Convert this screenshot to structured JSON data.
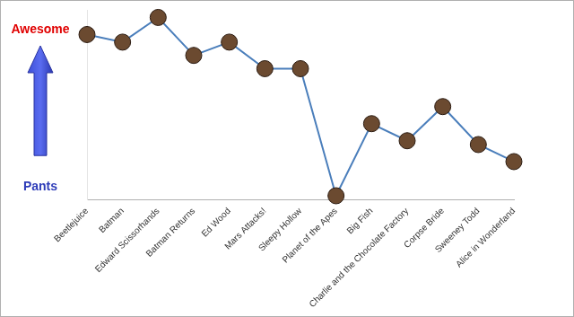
{
  "chart_data": {
    "type": "line",
    "categories": [
      "Beetlejuice",
      "Batman",
      "Edward Scissorhands",
      "Batman Returns",
      "Ed Wood",
      "Mars Attacks!",
      "Sleepy Hollow",
      "Planet of the Apes",
      "Big Fish",
      "Charlie and the Chocolate Factory",
      "Corpse Bride",
      "Sweeney Todd",
      "Alice in Wonderland"
    ],
    "values": [
      8.7,
      8.3,
      9.6,
      7.6,
      8.3,
      6.9,
      6.9,
      0.2,
      4.0,
      3.1,
      4.9,
      2.9,
      2.0
    ],
    "color": "#4a7ebb",
    "marker": "circle",
    "ylim": [
      0,
      10
    ],
    "grid": false,
    "tick_labels": "x",
    "annotations": [
      {
        "text": "Awesome",
        "color": "#e00000"
      },
      {
        "text": "Pants",
        "color": "#2e3cb8"
      }
    ]
  }
}
